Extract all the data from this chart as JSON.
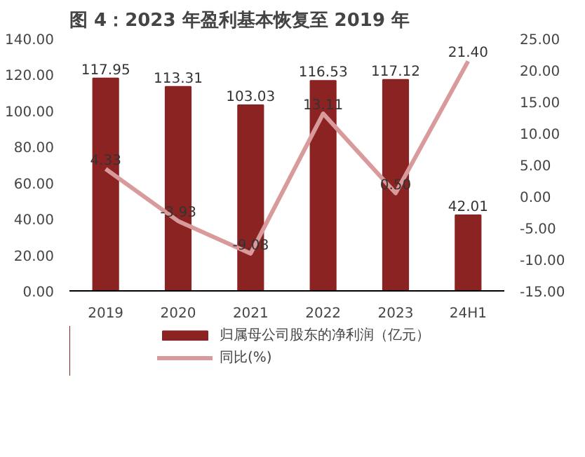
{
  "chart_data": {
    "type": "bar",
    "title": "图 4：2023 年盈利基本恢复至 2019 年",
    "categories": [
      "2019",
      "2020",
      "2021",
      "2022",
      "2023",
      "24H1"
    ],
    "series": [
      {
        "name": "归属母公司股东的净利润（亿元）",
        "color": "#8b2323",
        "values": [
          117.95,
          113.31,
          103.03,
          116.53,
          117.12,
          42.01
        ],
        "value_labels": [
          "117.95",
          "113.31",
          "103.03",
          "116.53",
          "117.12",
          "42.01"
        ]
      },
      {
        "name": "同比(%)",
        "type": "line",
        "axis": "y2",
        "color": "#d99a9c",
        "values": [
          4.33,
          -3.93,
          -9.08,
          13.11,
          0.5,
          21.4
        ],
        "value_labels": [
          "4.33",
          "-3.93",
          "-9.08",
          "13.11",
          "0.50",
          "21.40"
        ]
      }
    ],
    "ylim": [
      0,
      140
    ],
    "yticks": [
      {
        "value": 0,
        "label": "0.00"
      },
      {
        "value": 20,
        "label": "20.00"
      },
      {
        "value": 40,
        "label": "40.00"
      },
      {
        "value": 60,
        "label": "60.00"
      },
      {
        "value": 80,
        "label": "80.00"
      },
      {
        "value": 100,
        "label": "100.00"
      },
      {
        "value": 120,
        "label": "120.00"
      },
      {
        "value": 140,
        "label": "140.00"
      }
    ],
    "y2lim": [
      -15,
      25
    ],
    "y2ticks": [
      {
        "value": -15,
        "label": "-15.00"
      },
      {
        "value": -10,
        "label": "-10.00"
      },
      {
        "value": -5,
        "label": "-5.00"
      },
      {
        "value": 0,
        "label": "0.00"
      },
      {
        "value": 5,
        "label": "5.00"
      },
      {
        "value": 10,
        "label": "10.00"
      },
      {
        "value": 15,
        "label": "15.00"
      },
      {
        "value": 20,
        "label": "20.00"
      },
      {
        "value": 25,
        "label": "25.00"
      }
    ],
    "grid": false,
    "legend": "bottom",
    "marker": "none",
    "line_style": "solid"
  }
}
